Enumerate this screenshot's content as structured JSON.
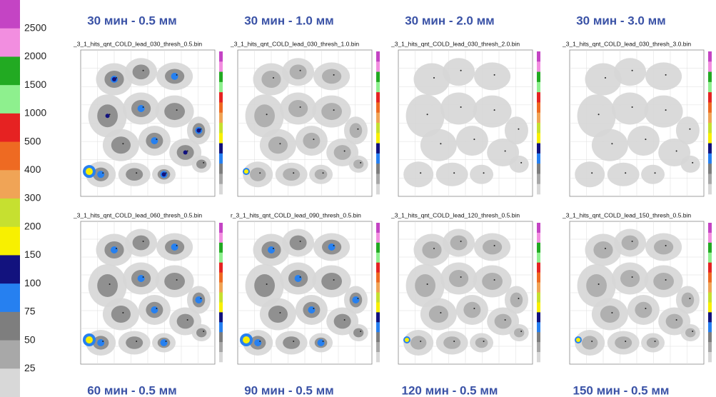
{
  "legend": {
    "colors": [
      "#c444c4",
      "#f28ee0",
      "#22aa22",
      "#8ef08e",
      "#e62222",
      "#ee6a22",
      "#f0a456",
      "#c6e030",
      "#f8f000",
      "#12127e",
      "#2680f0",
      "#7e7e7e",
      "#a8a8a8",
      "#d8d8d8"
    ],
    "levels": [
      2500,
      2000,
      1500,
      1000,
      500,
      400,
      300,
      200,
      150,
      100,
      75,
      50,
      25
    ]
  },
  "panels": [
    {
      "title": "30 мин - 0.5 мм",
      "file": "_3_1_hits_qnt_COLD_lead_030_thresh_0.5.bin"
    },
    {
      "title": "30 мин - 1.0 мм",
      "file": "_3_1_hits_qnt_COLD_lead_030_thresh_1.0.bin"
    },
    {
      "title": "30 мин - 2.0 мм",
      "file": "_3_1_hits_qnt_COLD_lead_030_thresh_2.0.bin"
    },
    {
      "title": "30 мин - 3.0 мм",
      "file": "_3_1_hits_qnt_COLD_lead_030_thresh_3.0.bin"
    },
    {
      "title": "60 мин - 0.5 мм",
      "file": "_3_1_hits_qnt_COLD_lead_060_thresh_0.5.bin"
    },
    {
      "title": "90 мин - 0.5 мм",
      "file": "r_3_1_hits_qnt_COLD_lead_090_thresh_0.5.bin"
    },
    {
      "title": "120 мин - 0.5 мм",
      "file": "_3_1_hits_qnt_COLD_lead_120_thresh_0.5.bin"
    },
    {
      "title": "150 мин - 0.5 мм",
      "file": "_3_1_hits_qnt_COLD_lead_150_thresh_0.5.bin"
    }
  ]
}
